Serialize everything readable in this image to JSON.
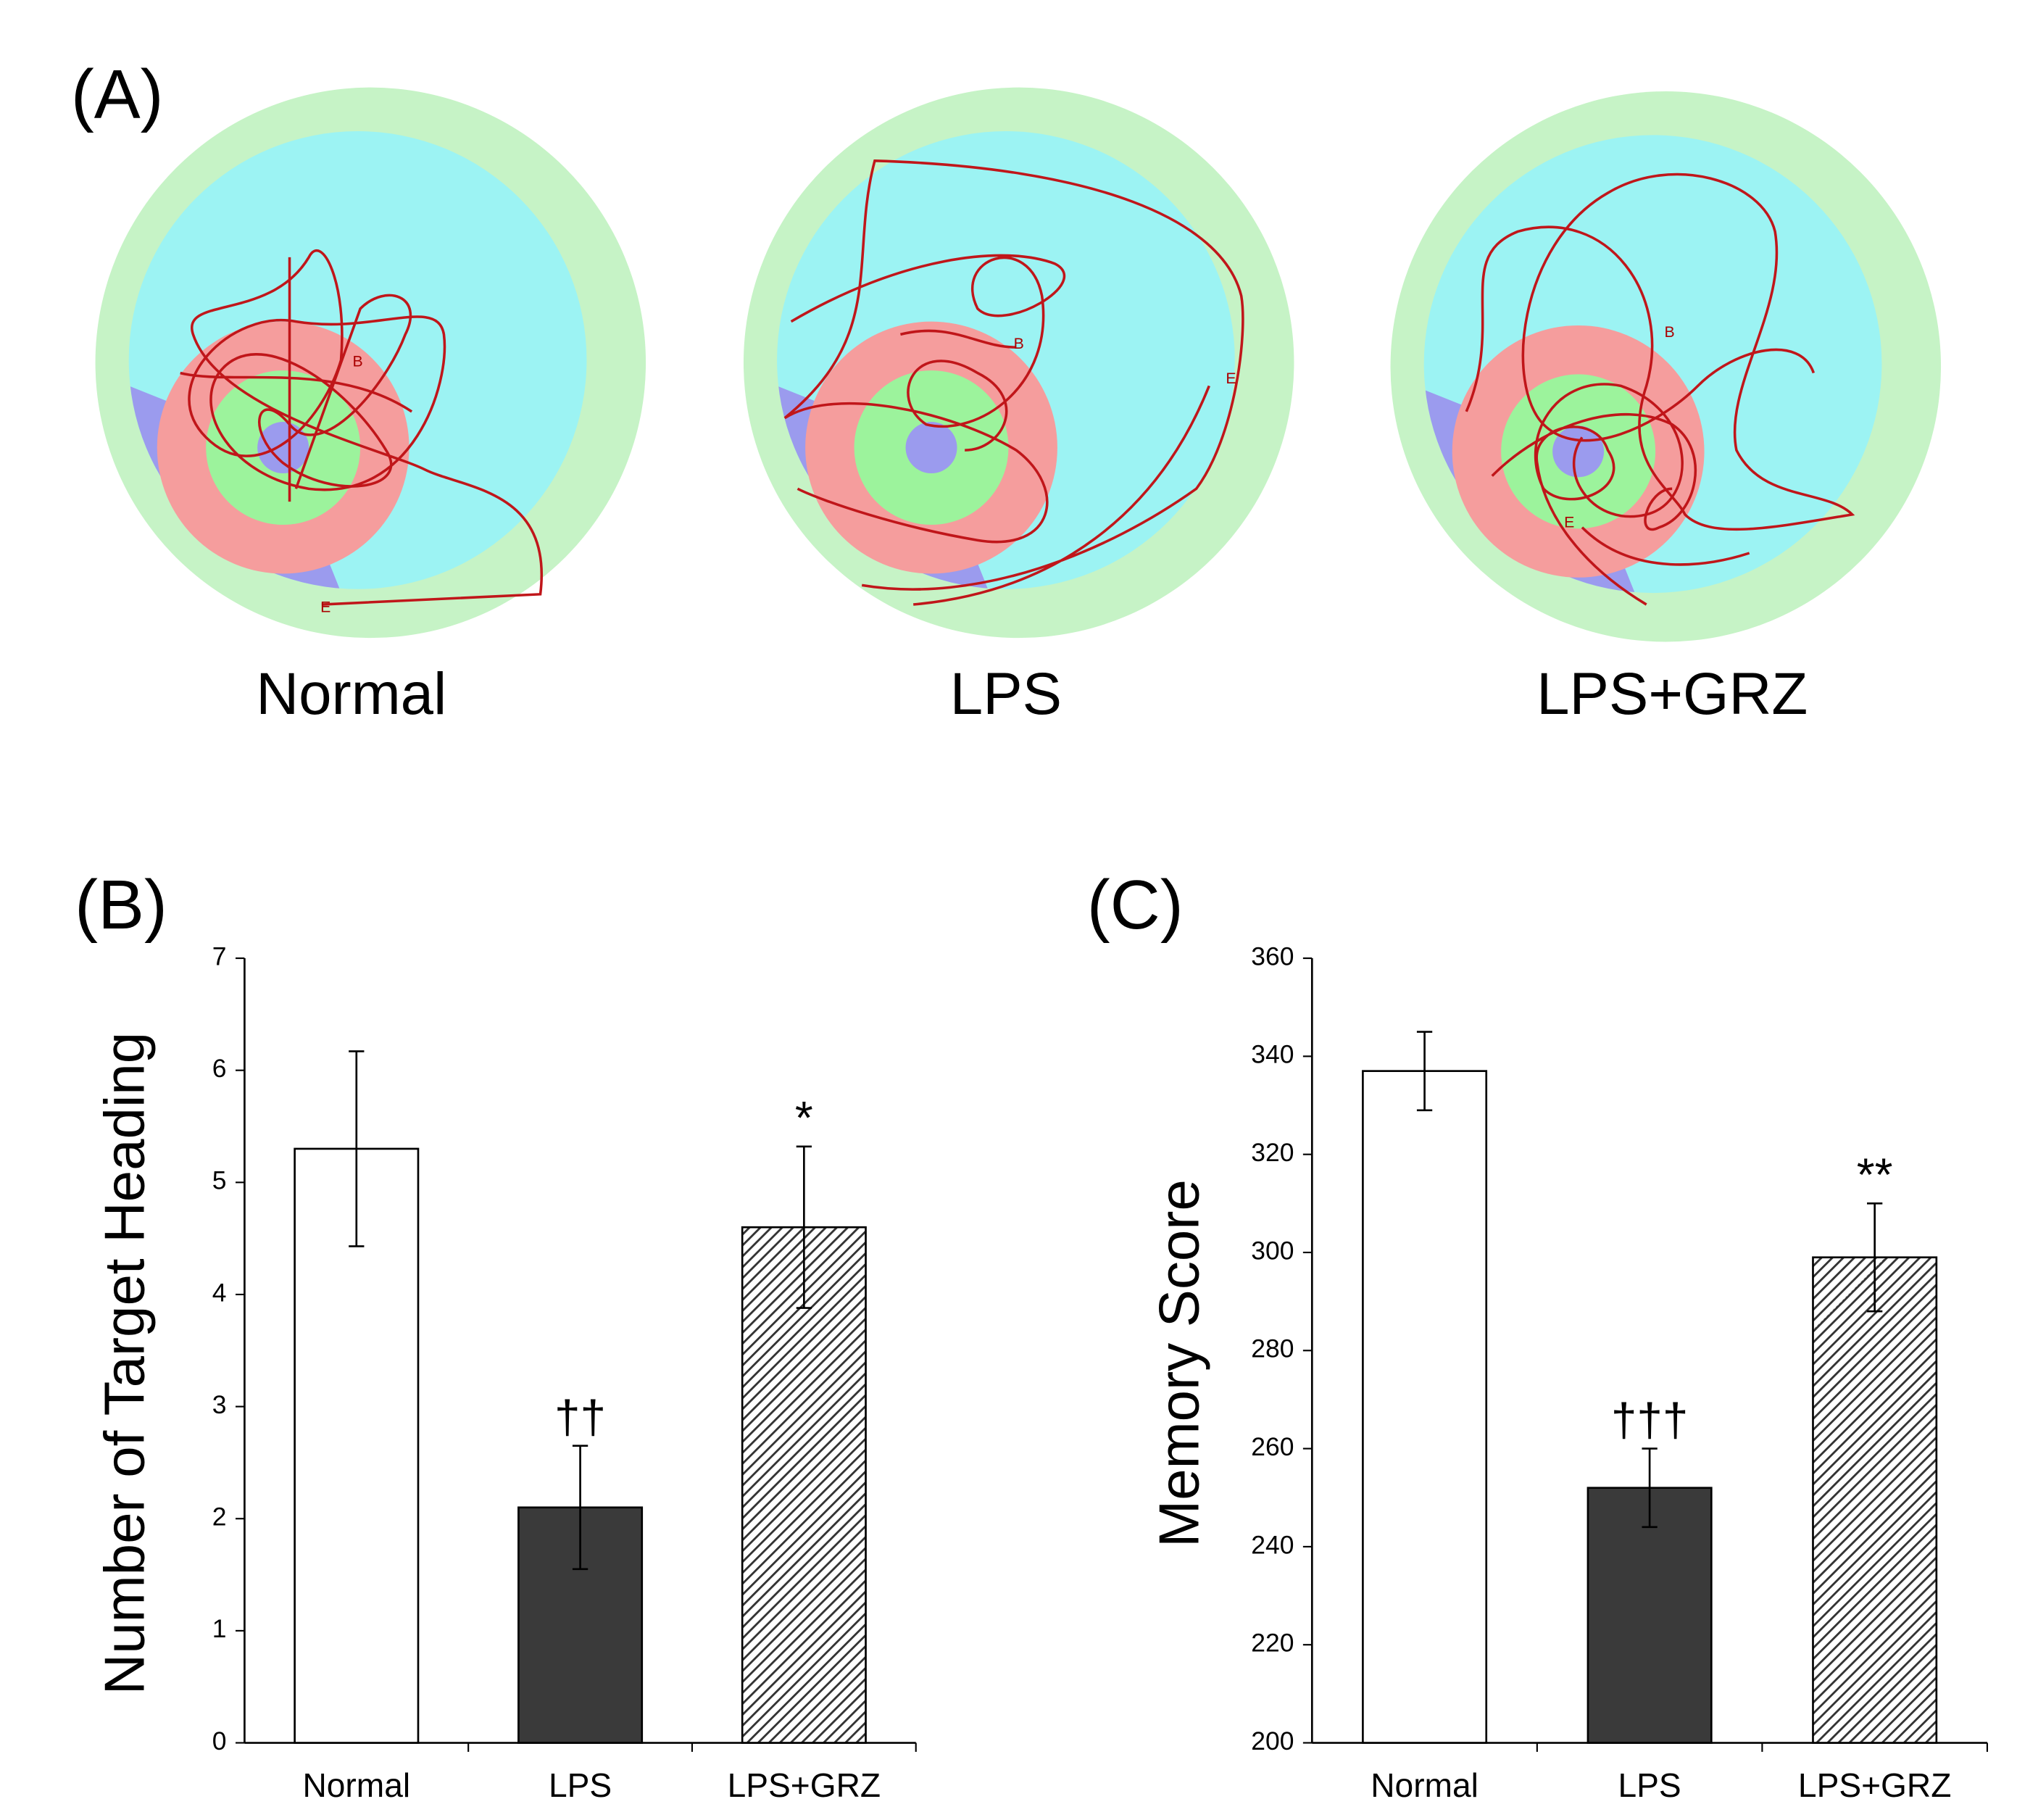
{
  "panel_a": {
    "panel_label": "(A)",
    "groups": [
      "Normal",
      "LPS",
      "LPS+GRZ"
    ],
    "start_label": "B",
    "end_label": "E"
  },
  "chart_data": [
    {
      "type": "bar",
      "panel_label": "(B)",
      "y_label": "Number of Target Heading",
      "categories": [
        "Normal",
        "LPS",
        "LPS+GRZ"
      ],
      "values": [
        5.3,
        2.1,
        4.6
      ],
      "errors": [
        0.87,
        0.55,
        0.72
      ],
      "value_annotations": [
        null,
        "††",
        "*"
      ],
      "colors": [
        "#ffffff",
        "#3a3a3a",
        "#3a3a3a"
      ],
      "patterns": [
        "solid",
        "solid",
        "hatch"
      ],
      "ylim": [
        0,
        7
      ],
      "yticks": [
        0,
        1,
        2,
        3,
        4,
        5,
        6,
        7
      ],
      "grid": false
    },
    {
      "type": "bar",
      "panel_label": "(C)",
      "y_label": "Memory Score",
      "categories": [
        "Normal",
        "LPS",
        "LPS+GRZ"
      ],
      "values": [
        337,
        252,
        299
      ],
      "errors": [
        8,
        8,
        11
      ],
      "value_annotations": [
        null,
        "†††",
        "**"
      ],
      "colors": [
        "#ffffff",
        "#3a3a3a",
        "#3a3a3a"
      ],
      "patterns": [
        "solid",
        "solid",
        "hatch"
      ],
      "ylim": [
        200,
        360
      ],
      "yticks": [
        200,
        220,
        240,
        260,
        280,
        300,
        320,
        340,
        360
      ],
      "grid": false
    }
  ]
}
